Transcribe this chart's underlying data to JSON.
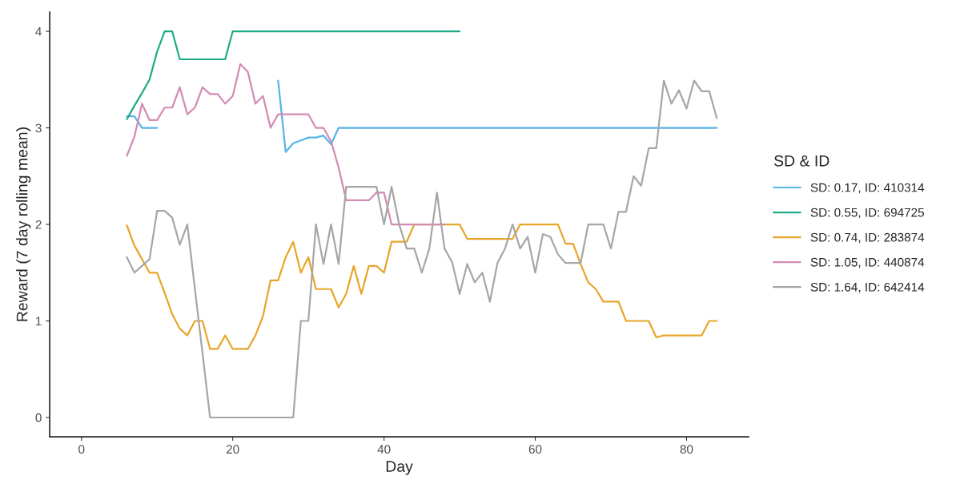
{
  "chart_data": {
    "type": "line",
    "xlabel": "Day",
    "ylabel": "Reward (7 day rolling mean)",
    "legend_title": "SD & ID",
    "legend": "right",
    "xlim": [
      -4.2,
      88.2
    ],
    "xticks": [
      0,
      20,
      40,
      60,
      80
    ],
    "ylim": [
      -0.2,
      4.2
    ],
    "yticks": [
      0,
      1,
      2,
      3,
      4
    ],
    "grid": false,
    "line_style": "solid",
    "series": [
      {
        "name": "SD: 0.17, ID: 410314",
        "color": "#56b4e9",
        "x": [
          6,
          7,
          8,
          10,
          11,
          26,
          27,
          28,
          29,
          30,
          31,
          32,
          33,
          34,
          84
        ],
        "values": [
          3.12,
          3.12,
          3.0,
          3.0,
          null,
          3.49,
          2.75,
          2.84,
          2.87,
          2.9,
          2.9,
          2.92,
          2.83,
          3.0,
          3.0
        ]
      },
      {
        "name": "SD: 0.55, ID: 694725",
        "color": "#1fab87",
        "x": [
          6,
          7,
          8,
          9,
          10,
          11,
          12,
          13,
          19,
          20,
          50
        ],
        "values": [
          3.09,
          3.23,
          3.36,
          3.5,
          3.79,
          4,
          4,
          3.71,
          3.71,
          4,
          4
        ]
      },
      {
        "name": "SD: 0.74, ID: 283874",
        "color": "#e8a52a",
        "x": [
          6,
          7,
          8,
          9,
          10,
          11,
          12,
          13,
          14,
          15,
          16,
          17,
          18,
          19,
          20,
          22,
          23,
          24,
          25,
          26,
          27,
          28,
          29,
          30,
          31,
          33,
          34,
          35,
          36,
          37,
          38,
          39,
          40,
          41,
          43,
          44,
          50,
          51,
          57,
          58,
          63,
          64,
          65,
          66,
          67,
          68,
          69,
          71,
          72,
          75,
          76,
          77,
          82,
          83,
          84
        ],
        "values": [
          1.99,
          1.78,
          1.64,
          1.5,
          1.5,
          1.29,
          1.07,
          0.92,
          0.85,
          1.0,
          1.0,
          0.71,
          0.71,
          0.85,
          0.71,
          0.71,
          0.85,
          1.05,
          1.42,
          1.42,
          1.66,
          1.82,
          1.5,
          1.66,
          1.33,
          1.33,
          1.14,
          1.28,
          1.57,
          1.28,
          1.57,
          1.57,
          1.5,
          1.82,
          1.82,
          2.0,
          2.0,
          1.85,
          1.85,
          2.0,
          2.0,
          1.8,
          1.8,
          1.59,
          1.4,
          1.33,
          1.2,
          1.2,
          1.0,
          1.0,
          0.83,
          0.85,
          0.85,
          1.0,
          1.0
        ]
      },
      {
        "name": "SD: 1.05, ID: 440874",
        "color": "#d48ab3",
        "x": [
          6,
          7,
          8,
          9,
          10,
          11,
          12,
          13,
          14,
          15,
          16,
          17,
          18,
          19,
          20,
          21,
          22,
          23,
          24,
          25,
          26,
          30,
          31,
          32,
          33,
          34,
          35,
          38,
          39,
          40,
          41,
          48
        ],
        "values": [
          2.71,
          2.91,
          3.25,
          3.08,
          3.08,
          3.21,
          3.21,
          3.42,
          3.14,
          3.21,
          3.42,
          3.35,
          3.35,
          3.25,
          3.33,
          3.66,
          3.58,
          3.25,
          3.33,
          3.0,
          3.14,
          3.14,
          3.0,
          3.0,
          2.86,
          2.59,
          2.25,
          2.25,
          2.33,
          2.33,
          2.0,
          2.0
        ]
      },
      {
        "name": "SD: 1.64, ID: 642414",
        "color": "#a6a6a6",
        "x": [
          6,
          7,
          8,
          9,
          10,
          11,
          12,
          13,
          14,
          15,
          16,
          17,
          28,
          29,
          30,
          31,
          32,
          33,
          34,
          35,
          36,
          37,
          38,
          39,
          40,
          41,
          42,
          43,
          44,
          45,
          46,
          47,
          48,
          49,
          50,
          51,
          52,
          53,
          54,
          55,
          56,
          57,
          58,
          59,
          60,
          61,
          62,
          63,
          64,
          65,
          66,
          67,
          68,
          69,
          70,
          71,
          72,
          73,
          74,
          75,
          76,
          77,
          78,
          79,
          80,
          81,
          82,
          83,
          84
        ],
        "values": [
          1.66,
          1.5,
          1.57,
          1.64,
          2.14,
          2.14,
          2.07,
          1.79,
          2.0,
          1.33,
          0.67,
          0,
          0,
          1.0,
          1.0,
          2.0,
          1.59,
          2.0,
          1.59,
          2.39,
          2.39,
          2.39,
          2.39,
          2.39,
          2.0,
          2.39,
          2.0,
          1.75,
          1.75,
          1.5,
          1.75,
          2.33,
          1.75,
          1.61,
          1.28,
          1.59,
          1.4,
          1.5,
          1.2,
          1.6,
          1.75,
          2.0,
          1.75,
          1.87,
          1.5,
          1.9,
          1.87,
          1.69,
          1.6,
          1.6,
          1.6,
          2.0,
          2.0,
          2.0,
          1.75,
          2.13,
          2.13,
          2.5,
          2.4,
          2.79,
          2.79,
          3.49,
          3.25,
          3.39,
          3.2,
          3.49,
          3.38,
          3.38,
          3.1
        ]
      }
    ]
  }
}
